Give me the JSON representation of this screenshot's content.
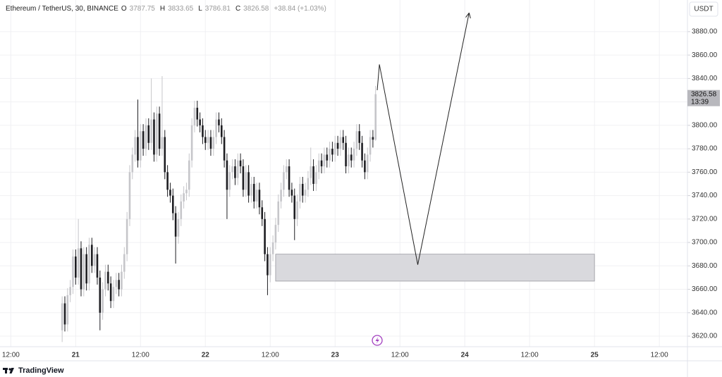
{
  "chart_data": {
    "type": "candlestick",
    "title": "Ethereum / TetherUS, 30, BINANCE",
    "ohlc_legend": [
      {
        "label": "O",
        "value": 3787.75
      },
      {
        "label": "H",
        "value": 3833.65
      },
      {
        "label": "L",
        "value": 3786.81
      },
      {
        "label": "C",
        "value": 3826.58
      }
    ],
    "change": "+38.84 (+1.03%)",
    "currency": "USDT",
    "countdown": "13:39",
    "brand": "TradingView",
    "up_color": "#c6c6ca",
    "down_color": "#1e1e22",
    "grid": true,
    "xlim": [
      -14,
      113.2
    ],
    "xticks": [
      {
        "value": -12,
        "label": "12:00"
      },
      {
        "value": 0,
        "label": "21"
      },
      {
        "value": 12,
        "label": "12:00"
      },
      {
        "value": 24,
        "label": "22"
      },
      {
        "value": 36,
        "label": "12:00"
      },
      {
        "value": 48,
        "label": "23"
      },
      {
        "value": 60,
        "label": "12:00"
      },
      {
        "value": 72,
        "label": "24"
      },
      {
        "value": 84,
        "label": "12:00"
      },
      {
        "value": 96,
        "label": "25"
      },
      {
        "value": 108,
        "label": "12:00"
      }
    ],
    "ylim": [
      3611,
      3907
    ],
    "yticks": [
      {
        "value": 3620,
        "label": "3620.00"
      },
      {
        "value": 3640,
        "label": "3640.00"
      },
      {
        "value": 3660,
        "label": "3660.00"
      },
      {
        "value": 3680,
        "label": "3680.00"
      },
      {
        "value": 3700,
        "label": "3700.00"
      },
      {
        "value": 3720,
        "label": "3720.00"
      },
      {
        "value": 3740,
        "label": "3740.00"
      },
      {
        "value": 3760,
        "label": "3760.00"
      },
      {
        "value": 3780,
        "label": "3780.00"
      },
      {
        "value": 3800,
        "label": "3800.00"
      },
      {
        "value": 3820,
        "label": "3820.00"
      },
      {
        "value": 3840,
        "label": "3840.00"
      },
      {
        "value": 3860,
        "label": "3860.00"
      },
      {
        "value": 3880,
        "label": "3880.00"
      }
    ],
    "x": [
      -2.5,
      -2,
      -1.5,
      -1,
      -0.5,
      0,
      0.5,
      1,
      1.5,
      2,
      2.5,
      3,
      3.5,
      4,
      4.5,
      5,
      5.5,
      6,
      6.5,
      7,
      7.5,
      8,
      8.5,
      9,
      9.5,
      10,
      10.5,
      11,
      11.5,
      12,
      12.5,
      13,
      13.5,
      14,
      14.5,
      15,
      15.5,
      16,
      16.5,
      17,
      17.5,
      18,
      18.5,
      19,
      19.5,
      20,
      20.5,
      21,
      21.5,
      22,
      22.5,
      23,
      23.5,
      24,
      24.5,
      25,
      25.5,
      26,
      26.5,
      27,
      27.5,
      28,
      28.5,
      29,
      29.5,
      30,
      30.5,
      31,
      31.5,
      32,
      32.5,
      33,
      33.5,
      34,
      34.5,
      35,
      35.5,
      36,
      36.5,
      37,
      37.5,
      38,
      38.5,
      39,
      39.5,
      40,
      40.5,
      41,
      41.5,
      42,
      42.5,
      43,
      43.5,
      44,
      44.5,
      45,
      45.5,
      46,
      46.5,
      47,
      47.5,
      48,
      48.5,
      49,
      49.5,
      50,
      50.5,
      51,
      51.5,
      52,
      52.5,
      53,
      53.5,
      54,
      54.5,
      55,
      55.5
    ],
    "open": [
      3625,
      3648,
      3630,
      3655,
      3662,
      3688,
      3670,
      3695,
      3660,
      3690,
      3665,
      3698,
      3680,
      3690,
      3670,
      3640,
      3660,
      3675,
      3665,
      3650,
      3662,
      3668,
      3660,
      3675,
      3690,
      3720,
      3760,
      3775,
      3790,
      3770,
      3795,
      3780,
      3800,
      3785,
      3805,
      3775,
      3810,
      3780,
      3790,
      3760,
      3745,
      3740,
      3725,
      3705,
      3720,
      3735,
      3742,
      3745,
      3770,
      3800,
      3815,
      3805,
      3800,
      3790,
      3785,
      3790,
      3780,
      3790,
      3805,
      3800,
      3790,
      3770,
      3745,
      3760,
      3765,
      3755,
      3770,
      3765,
      3745,
      3760,
      3740,
      3750,
      3735,
      3745,
      3730,
      3720,
      3690,
      3672,
      3690,
      3700,
      3715,
      3735,
      3745,
      3760,
      3765,
      3745,
      3740,
      3720,
      3735,
      3750,
      3740,
      3745,
      3755,
      3765,
      3750,
      3760,
      3770,
      3765,
      3775,
      3770,
      3780,
      3775,
      3785,
      3780,
      3790,
      3785,
      3765,
      3775,
      3770,
      3780,
      3795,
      3785,
      3770,
      3760,
      3775,
      3790,
      3787.75
    ],
    "high": [
      3654,
      3654,
      3661,
      3668,
      3694,
      3694,
      3720,
      3701,
      3696,
      3696,
      3704,
      3704,
      3696,
      3696,
      3676,
      3666,
      3681,
      3681,
      3671,
      3668,
      3674,
      3674,
      3681,
      3696,
      3726,
      3766,
      3781,
      3796,
      3822,
      3801,
      3801,
      3806,
      3806,
      3840,
      3811,
      3816,
      3816,
      3842,
      3796,
      3766,
      3751,
      3746,
      3731,
      3726,
      3741,
      3748,
      3751,
      3776,
      3806,
      3821,
      3821,
      3811,
      3806,
      3796,
      3796,
      3796,
      3796,
      3811,
      3811,
      3806,
      3796,
      3776,
      3766,
      3771,
      3771,
      3776,
      3776,
      3771,
      3766,
      3766,
      3756,
      3756,
      3751,
      3751,
      3736,
      3726,
      3696,
      3696,
      3706,
      3721,
      3741,
      3751,
      3766,
      3771,
      3771,
      3751,
      3746,
      3741,
      3756,
      3756,
      3751,
      3761,
      3781,
      3771,
      3766,
      3776,
      3776,
      3781,
      3781,
      3786,
      3786,
      3791,
      3791,
      3796,
      3796,
      3791,
      3781,
      3781,
      3786,
      3801,
      3801,
      3791,
      3776,
      3781,
      3796,
      3796,
      3833.65
    ],
    "low": [
      3615,
      3624,
      3624,
      3649,
      3656,
      3664,
      3664,
      3654,
      3654,
      3659,
      3659,
      3674,
      3674,
      3664,
      3625,
      3634,
      3654,
      3659,
      3644,
      3644,
      3656,
      3654,
      3654,
      3669,
      3684,
      3714,
      3754,
      3769,
      3764,
      3764,
      3774,
      3774,
      3779,
      3779,
      3769,
      3769,
      3774,
      3774,
      3754,
      3739,
      3734,
      3719,
      3682,
      3699,
      3714,
      3729,
      3736,
      3739,
      3764,
      3794,
      3799,
      3794,
      3784,
      3779,
      3779,
      3774,
      3774,
      3784,
      3794,
      3784,
      3764,
      3720,
      3739,
      3754,
      3749,
      3749,
      3759,
      3739,
      3739,
      3734,
      3734,
      3729,
      3729,
      3724,
      3714,
      3684,
      3655,
      3666,
      3684,
      3694,
      3709,
      3729,
      3739,
      3754,
      3739,
      3734,
      3702,
      3714,
      3729,
      3734,
      3734,
      3739,
      3749,
      3744,
      3744,
      3754,
      3759,
      3759,
      3764,
      3764,
      3769,
      3769,
      3774,
      3774,
      3779,
      3759,
      3759,
      3764,
      3764,
      3774,
      3779,
      3764,
      3754,
      3754,
      3769,
      3781,
      3786.81
    ],
    "close": [
      3648,
      3630,
      3655,
      3662,
      3688,
      3670,
      3695,
      3660,
      3690,
      3665,
      3698,
      3680,
      3690,
      3670,
      3640,
      3660,
      3675,
      3665,
      3650,
      3662,
      3668,
      3660,
      3675,
      3690,
      3720,
      3760,
      3775,
      3790,
      3770,
      3795,
      3780,
      3800,
      3785,
      3805,
      3775,
      3810,
      3780,
      3790,
      3760,
      3745,
      3740,
      3725,
      3705,
      3720,
      3735,
      3742,
      3745,
      3770,
      3800,
      3815,
      3805,
      3800,
      3790,
      3785,
      3790,
      3780,
      3790,
      3805,
      3800,
      3790,
      3770,
      3745,
      3760,
      3765,
      3755,
      3770,
      3765,
      3745,
      3760,
      3740,
      3750,
      3735,
      3745,
      3730,
      3720,
      3690,
      3672,
      3690,
      3700,
      3715,
      3735,
      3745,
      3760,
      3765,
      3745,
      3740,
      3720,
      3735,
      3750,
      3740,
      3745,
      3755,
      3765,
      3750,
      3760,
      3770,
      3765,
      3775,
      3770,
      3780,
      3775,
      3785,
      3780,
      3790,
      3785,
      3765,
      3775,
      3770,
      3780,
      3795,
      3785,
      3770,
      3760,
      3775,
      3790,
      3787.75,
      3826.58
    ],
    "zone": {
      "x": [
        37,
        96
      ],
      "y": [
        3667,
        3690
      ],
      "color": "#d9d9dd"
    },
    "projection": {
      "x": [
        55.8,
        56.2,
        63.3,
        72.8
      ],
      "y": [
        3830,
        3852,
        3681,
        3896
      ],
      "color": "#222222"
    }
  }
}
